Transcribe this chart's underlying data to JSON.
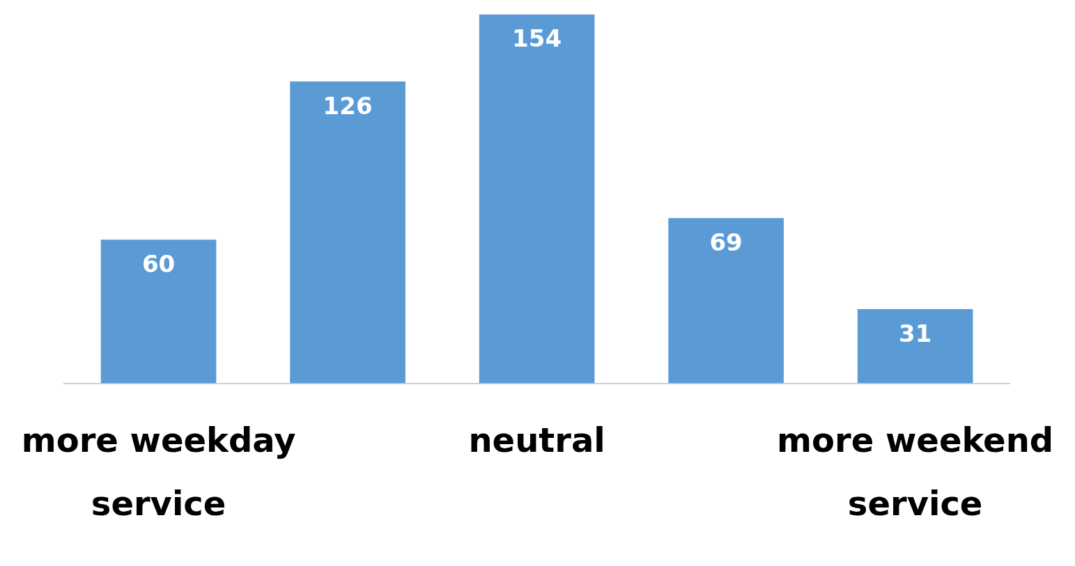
{
  "chart_data": {
    "type": "bar",
    "categories": [
      "more weekday service",
      null,
      "neutral",
      null,
      "more weekend service"
    ],
    "values": [
      60,
      126,
      154,
      69,
      31
    ],
    "color": "#5b9bd5",
    "data_labels": true,
    "grid": false
  }
}
